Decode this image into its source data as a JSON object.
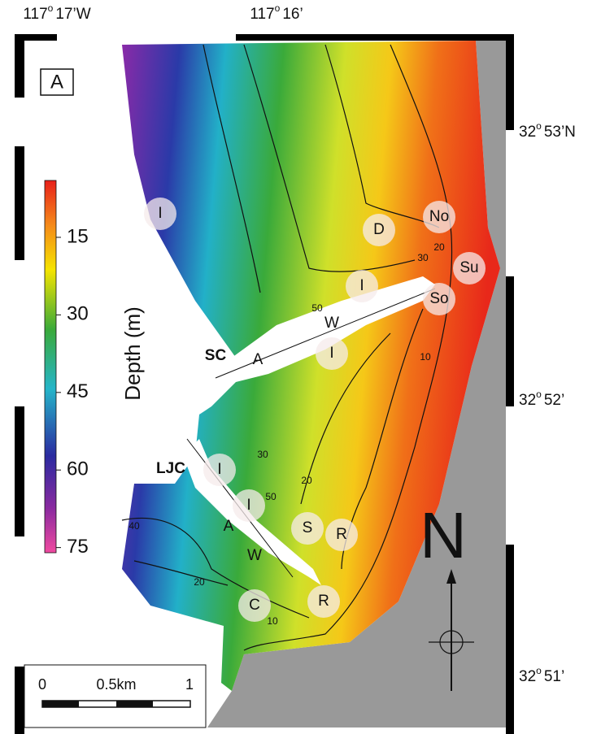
{
  "longitude_labels": [
    {
      "deg": "117",
      "sup": "o",
      "min": "17’W"
    },
    {
      "deg": "117",
      "sup": "o",
      "min": "16’"
    }
  ],
  "latitude_labels": [
    {
      "deg": "32",
      "sup": "o",
      "min": "53’N"
    },
    {
      "deg": "32",
      "sup": "o",
      "min": "52’"
    },
    {
      "deg": "32",
      "sup": "o",
      "min": "51’"
    }
  ],
  "panel_label": "A",
  "colorbar": {
    "label": "Depth (m)",
    "lim": [
      4,
      76
    ],
    "ticks": [
      15,
      30,
      45,
      60,
      75
    ]
  },
  "canyons": [
    "SC",
    "LJC"
  ],
  "sites": [
    "I",
    "D",
    "No",
    "Su",
    "So",
    "I",
    "W",
    "I",
    "A",
    "I",
    "I",
    "A",
    "S",
    "R",
    "W",
    "R",
    "C"
  ],
  "contour_labels": [
    "20",
    "30",
    "50",
    "10",
    "30",
    "20",
    "50",
    "40",
    "20",
    "10"
  ],
  "scale_bar": {
    "labels": [
      "0",
      "0.5km",
      "1"
    ]
  },
  "north": "N"
}
